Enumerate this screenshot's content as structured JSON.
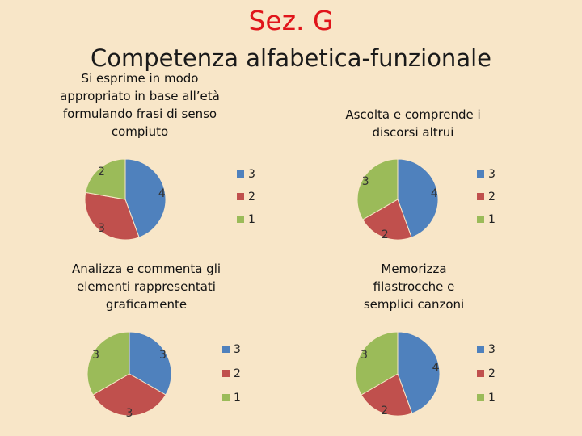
{
  "header": {
    "title": "Sez. G",
    "subtitle": "Competenza alfabetica-funzionale"
  },
  "colors": {
    "series_3": "#4f81bd",
    "series_2": "#c0504d",
    "series_1": "#9bbb59"
  },
  "chart_data": [
    {
      "type": "pie",
      "title": "Si esprime in modo appropriato in base all’età formulando frasi di senso compiuto",
      "categories": [
        "3",
        "2",
        "1"
      ],
      "values": [
        4,
        3,
        2
      ],
      "legend_position": "right"
    },
    {
      "type": "pie",
      "title": "Ascolta e comprende i discorsi altrui",
      "categories": [
        "3",
        "2",
        "1"
      ],
      "values": [
        4,
        2,
        3
      ],
      "legend_position": "right"
    },
    {
      "type": "pie",
      "title": "Analizza e commenta gli elementi rappresentati graficamente",
      "categories": [
        "3",
        "2",
        "1"
      ],
      "values": [
        3,
        3,
        3
      ],
      "legend_position": "right"
    },
    {
      "type": "pie",
      "title": "Memorizza filastrocche e semplici canzoni",
      "categories": [
        "3",
        "2",
        "1"
      ],
      "values": [
        4,
        2,
        3
      ],
      "legend_position": "right"
    }
  ]
}
